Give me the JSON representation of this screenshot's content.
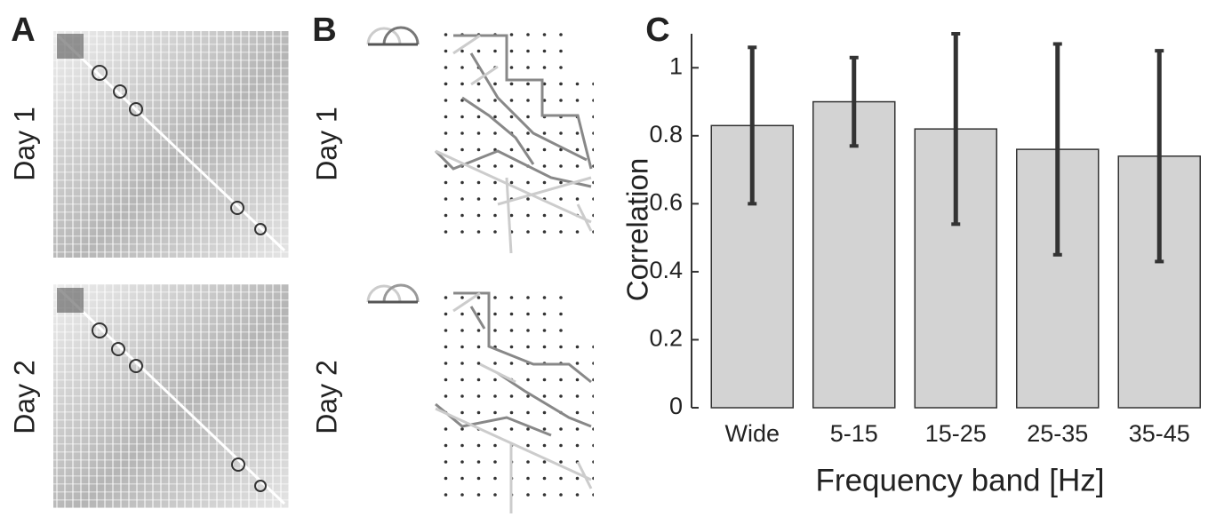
{
  "panel_a": {
    "label": "A",
    "rows": [
      "Day 1",
      "Day 2"
    ]
  },
  "panel_b": {
    "label": "B",
    "rows": [
      "Day 1",
      "Day 2"
    ]
  },
  "chart_data": {
    "type": "bar",
    "panel_label": "C",
    "categories": [
      "Wide",
      "5-15",
      "15-25",
      "25-35",
      "35-45"
    ],
    "values": [
      0.83,
      0.9,
      0.82,
      0.76,
      0.74
    ],
    "errors": [
      0.23,
      0.13,
      0.28,
      0.31,
      0.31
    ],
    "color": "#d3d3d3",
    "error_color": "#333333",
    "x_label": "Frequency band [Hz]",
    "y_label": "Correlation",
    "ylim": [
      0,
      1.1
    ],
    "yticks": [
      0,
      0.2,
      0.4,
      0.6,
      0.8,
      1
    ],
    "grid": false
  }
}
